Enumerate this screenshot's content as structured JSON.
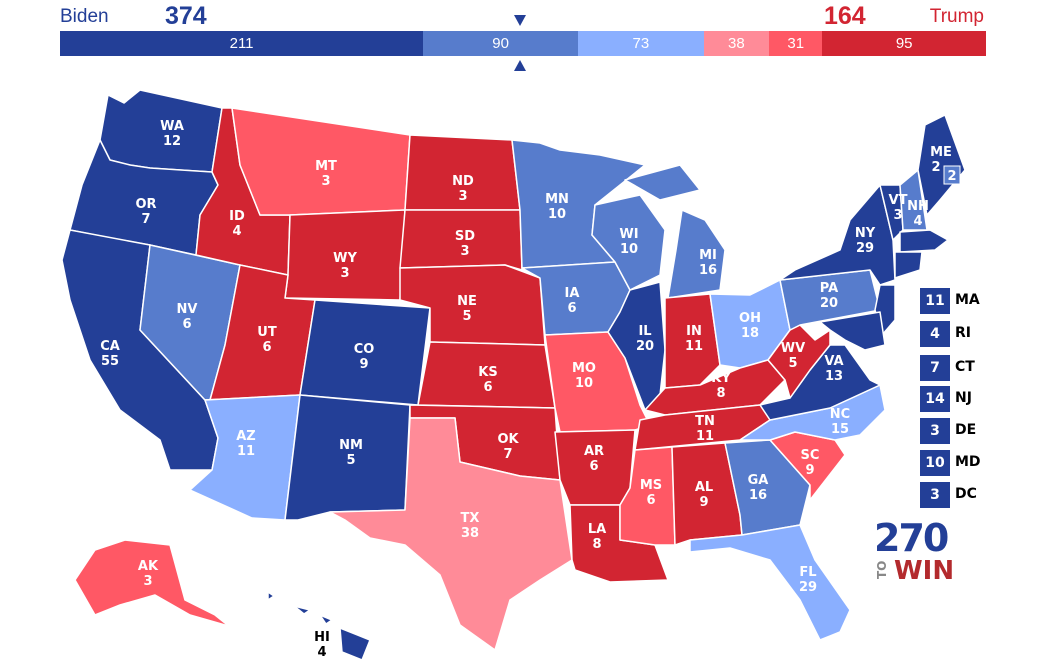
{
  "header": {
    "biden_name": "Biden",
    "biden_total": "374",
    "trump_name": "Trump",
    "trump_total": "164"
  },
  "bar": [
    {
      "label": "211",
      "value": 211,
      "color": "#233f97"
    },
    {
      "label": "90",
      "value": 90,
      "color": "#577ccc"
    },
    {
      "label": "73",
      "value": 73,
      "color": "#8aafff"
    },
    {
      "label": "38",
      "value": 38,
      "color": "#ff8b98"
    },
    {
      "label": "31",
      "value": 31,
      "color": "#ff5865"
    },
    {
      "label": "95",
      "value": 95,
      "color": "#d22532"
    }
  ],
  "colors": {
    "safe_d": "#233f97",
    "likely_d": "#577ccc",
    "lean_d": "#8aafff",
    "tilt_r": "#ff8b98",
    "lean_r": "#ff5865",
    "safe_r": "#d22532"
  },
  "states": [
    {
      "abbr": "WA",
      "ev": "12",
      "rating": "safe_d"
    },
    {
      "abbr": "OR",
      "ev": "7",
      "rating": "safe_d"
    },
    {
      "abbr": "CA",
      "ev": "55",
      "rating": "safe_d"
    },
    {
      "abbr": "NV",
      "ev": "6",
      "rating": "likely_d"
    },
    {
      "abbr": "ID",
      "ev": "4",
      "rating": "safe_r"
    },
    {
      "abbr": "MT",
      "ev": "3",
      "rating": "lean_r"
    },
    {
      "abbr": "WY",
      "ev": "3",
      "rating": "safe_r"
    },
    {
      "abbr": "UT",
      "ev": "6",
      "rating": "safe_r"
    },
    {
      "abbr": "AZ",
      "ev": "11",
      "rating": "lean_d"
    },
    {
      "abbr": "CO",
      "ev": "9",
      "rating": "safe_d"
    },
    {
      "abbr": "NM",
      "ev": "5",
      "rating": "safe_d"
    },
    {
      "abbr": "ND",
      "ev": "3",
      "rating": "safe_r"
    },
    {
      "abbr": "SD",
      "ev": "3",
      "rating": "safe_r"
    },
    {
      "abbr": "NE",
      "ev": "5",
      "rating": "safe_r"
    },
    {
      "abbr": "KS",
      "ev": "6",
      "rating": "safe_r"
    },
    {
      "abbr": "OK",
      "ev": "7",
      "rating": "safe_r"
    },
    {
      "abbr": "TX",
      "ev": "38",
      "rating": "tilt_r"
    },
    {
      "abbr": "MN",
      "ev": "10",
      "rating": "likely_d"
    },
    {
      "abbr": "IA",
      "ev": "6",
      "rating": "likely_d"
    },
    {
      "abbr": "MO",
      "ev": "10",
      "rating": "lean_r"
    },
    {
      "abbr": "AR",
      "ev": "6",
      "rating": "safe_r"
    },
    {
      "abbr": "LA",
      "ev": "8",
      "rating": "safe_r"
    },
    {
      "abbr": "WI",
      "ev": "10",
      "rating": "likely_d"
    },
    {
      "abbr": "IL",
      "ev": "20",
      "rating": "safe_d"
    },
    {
      "abbr": "MI",
      "ev": "16",
      "rating": "likely_d"
    },
    {
      "abbr": "IN",
      "ev": "11",
      "rating": "safe_r"
    },
    {
      "abbr": "OH",
      "ev": "18",
      "rating": "lean_d"
    },
    {
      "abbr": "KY",
      "ev": "8",
      "rating": "safe_r"
    },
    {
      "abbr": "TN",
      "ev": "11",
      "rating": "safe_r"
    },
    {
      "abbr": "MS",
      "ev": "6",
      "rating": "lean_r"
    },
    {
      "abbr": "AL",
      "ev": "9",
      "rating": "safe_r"
    },
    {
      "abbr": "GA",
      "ev": "16",
      "rating": "likely_d"
    },
    {
      "abbr": "FL",
      "ev": "29",
      "rating": "lean_d"
    },
    {
      "abbr": "SC",
      "ev": "9",
      "rating": "lean_r"
    },
    {
      "abbr": "NC",
      "ev": "15",
      "rating": "lean_d"
    },
    {
      "abbr": "VA",
      "ev": "13",
      "rating": "safe_d"
    },
    {
      "abbr": "WV",
      "ev": "5",
      "rating": "safe_r"
    },
    {
      "abbr": "PA",
      "ev": "20",
      "rating": "likely_d"
    },
    {
      "abbr": "NY",
      "ev": "29",
      "rating": "safe_d"
    },
    {
      "abbr": "VT",
      "ev": "3",
      "rating": "safe_d"
    },
    {
      "abbr": "NH",
      "ev": "4",
      "rating": "likely_d"
    },
    {
      "abbr": "ME",
      "ev": "2",
      "rating": "safe_d"
    },
    {
      "abbr": "AK",
      "ev": "3",
      "rating": "lean_r"
    },
    {
      "abbr": "HI",
      "ev": "4",
      "rating": "safe_d"
    }
  ],
  "small_states": [
    {
      "ev": "11",
      "abbr": "MA"
    },
    {
      "ev": "4",
      "abbr": "RI"
    },
    {
      "ev": "7",
      "abbr": "CT"
    },
    {
      "ev": "14",
      "abbr": "NJ"
    },
    {
      "ev": "3",
      "abbr": "DE"
    },
    {
      "ev": "10",
      "abbr": "MD"
    },
    {
      "ev": "3",
      "abbr": "DC"
    }
  ],
  "maine_district_ev": "2",
  "logo": {
    "number": "270",
    "to": "TO",
    "win": "WIN"
  }
}
